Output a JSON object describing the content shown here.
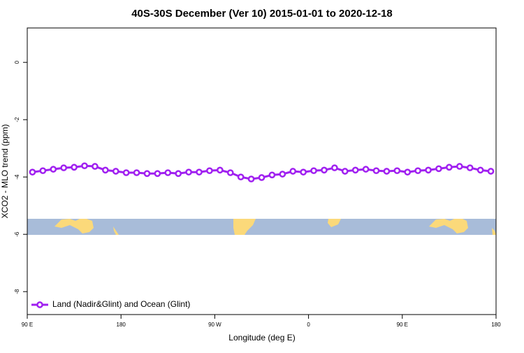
{
  "chart_data": {
    "type": "line",
    "title": "40S-30S December (Ver 10)   2015-01-01 to 2020-12-18",
    "x_label": "Longitude (deg E)",
    "y_label": "XCO2 - MLO trend (ppm)",
    "x": [
      95,
      105,
      115,
      125,
      135,
      145,
      155,
      165,
      175,
      185,
      195,
      205,
      215,
      225,
      235,
      245,
      255,
      265,
      275,
      285,
      295,
      305,
      315,
      325,
      335,
      345,
      355,
      365,
      375,
      385,
      395,
      405,
      415,
      425,
      435,
      445,
      455,
      465,
      475,
      485,
      495,
      505,
      515,
      525,
      535
    ],
    "series": [
      {
        "name": "Land (Nadir&Glint) and Ocean (Glint)",
        "color": "#a020f0",
        "values": [
          -3.83,
          -3.78,
          -3.73,
          -3.68,
          -3.66,
          -3.61,
          -3.63,
          -3.76,
          -3.8,
          -3.85,
          -3.85,
          -3.88,
          -3.88,
          -3.85,
          -3.88,
          -3.83,
          -3.83,
          -3.78,
          -3.76,
          -3.85,
          -4.0,
          -4.07,
          -4.02,
          -3.93,
          -3.9,
          -3.8,
          -3.83,
          -3.78,
          -3.76,
          -3.68,
          -3.8,
          -3.76,
          -3.73,
          -3.78,
          -3.8,
          -3.78,
          -3.83,
          -3.78,
          -3.76,
          -3.71,
          -3.66,
          -3.63,
          -3.68,
          -3.76,
          -3.8
        ]
      }
    ],
    "xlim": [
      90,
      540
    ],
    "xticks": [
      {
        "value": 90,
        "label": "90 E"
      },
      180,
      {
        "value": 270,
        "label": "90 W"
      },
      {
        "value": 360,
        "label": "0"
      },
      {
        "value": 450,
        "label": "90 E"
      },
      {
        "value": 540,
        "label": "180"
      }
    ],
    "ylim": [
      -8.8,
      1.2
    ],
    "yticks": [
      0,
      -2,
      -4,
      -6,
      -8
    ],
    "legend": "bottomleft"
  }
}
